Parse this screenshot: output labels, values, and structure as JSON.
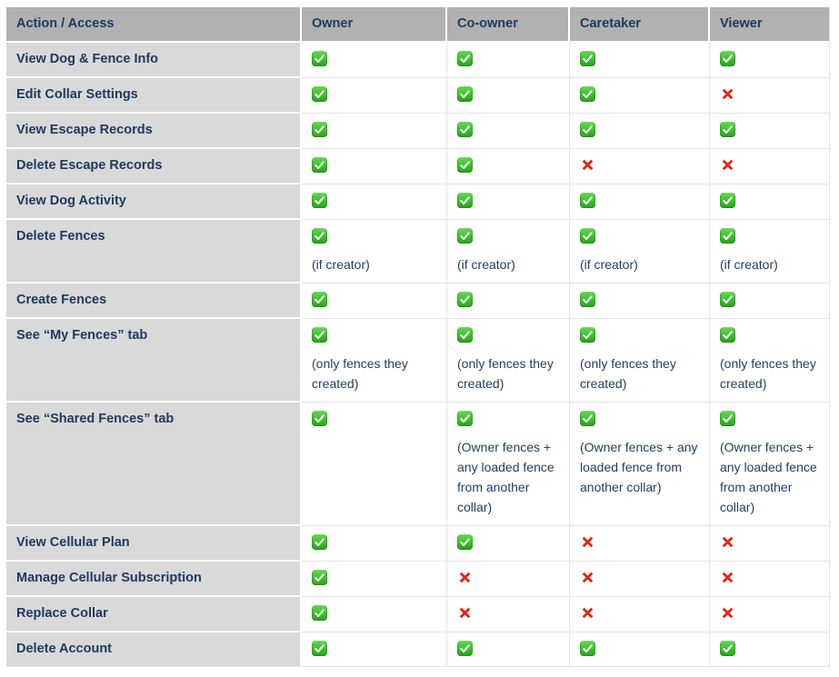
{
  "colors": {
    "header_bg": "#b1b1b1",
    "label_cell_bg": "#d9d9d9",
    "heading_text": "#1f3a60",
    "note_text": "#24405f",
    "check_green": "#2fa31f",
    "cross_red": "#e02414",
    "grid_line": "#e6e6e6"
  },
  "icons": {
    "check": "check-icon",
    "cross": "cross-icon"
  },
  "table": {
    "columns": [
      {
        "label": "Action / Access",
        "slug": "action-access"
      },
      {
        "label": "Owner",
        "slug": "owner"
      },
      {
        "label": "Co-owner",
        "slug": "co-owner"
      },
      {
        "label": "Caretaker",
        "slug": "caretaker"
      },
      {
        "label": "Viewer",
        "slug": "viewer"
      }
    ],
    "rows": [
      {
        "label": "View Dog & Fence Info",
        "cells": [
          {
            "mark": "check"
          },
          {
            "mark": "check"
          },
          {
            "mark": "check"
          },
          {
            "mark": "check"
          }
        ]
      },
      {
        "label": "Edit Collar Settings",
        "cells": [
          {
            "mark": "check"
          },
          {
            "mark": "check"
          },
          {
            "mark": "check"
          },
          {
            "mark": "cross"
          }
        ]
      },
      {
        "label": "View Escape Records",
        "cells": [
          {
            "mark": "check"
          },
          {
            "mark": "check"
          },
          {
            "mark": "check"
          },
          {
            "mark": "check"
          }
        ]
      },
      {
        "label": "Delete Escape Records",
        "cells": [
          {
            "mark": "check"
          },
          {
            "mark": "check"
          },
          {
            "mark": "cross"
          },
          {
            "mark": "cross"
          }
        ]
      },
      {
        "label": "View Dog Activity",
        "cells": [
          {
            "mark": "check"
          },
          {
            "mark": "check"
          },
          {
            "mark": "check"
          },
          {
            "mark": "check"
          }
        ]
      },
      {
        "label": "Delete Fences",
        "cells": [
          {
            "mark": "check",
            "note": "(if creator)"
          },
          {
            "mark": "check",
            "note": "(if creator)"
          },
          {
            "mark": "check",
            "note": "(if creator)"
          },
          {
            "mark": "check",
            "note": "(if creator)"
          }
        ]
      },
      {
        "label": "Create Fences",
        "cells": [
          {
            "mark": "check"
          },
          {
            "mark": "check"
          },
          {
            "mark": "check"
          },
          {
            "mark": "check"
          }
        ]
      },
      {
        "label": "See “My Fences” tab",
        "cells": [
          {
            "mark": "check",
            "note": "(only fences they created)"
          },
          {
            "mark": "check",
            "note": "(only fences they created)"
          },
          {
            "mark": "check",
            "note": "(only fences they created)"
          },
          {
            "mark": "check",
            "note": "(only fences they created)"
          }
        ]
      },
      {
        "label": "See “Shared Fences” tab",
        "cells": [
          {
            "mark": "check"
          },
          {
            "mark": "check",
            "note": "(Owner fences + any loaded fence from another collar)"
          },
          {
            "mark": "check",
            "note": "(Owner fences + any loaded fence from another collar)"
          },
          {
            "mark": "check",
            "note": "(Owner fences + any loaded fence from another collar)"
          }
        ]
      },
      {
        "label": "View Cellular Plan",
        "cells": [
          {
            "mark": "check"
          },
          {
            "mark": "check"
          },
          {
            "mark": "cross"
          },
          {
            "mark": "cross"
          }
        ]
      },
      {
        "label": "Manage Cellular Subscription",
        "cells": [
          {
            "mark": "check"
          },
          {
            "mark": "cross"
          },
          {
            "mark": "cross"
          },
          {
            "mark": "cross"
          }
        ]
      },
      {
        "label": "Replace Collar",
        "cells": [
          {
            "mark": "check"
          },
          {
            "mark": "cross"
          },
          {
            "mark": "cross"
          },
          {
            "mark": "cross"
          }
        ]
      },
      {
        "label": "Delete Account",
        "cells": [
          {
            "mark": "check"
          },
          {
            "mark": "check"
          },
          {
            "mark": "check"
          },
          {
            "mark": "check"
          }
        ]
      }
    ]
  }
}
